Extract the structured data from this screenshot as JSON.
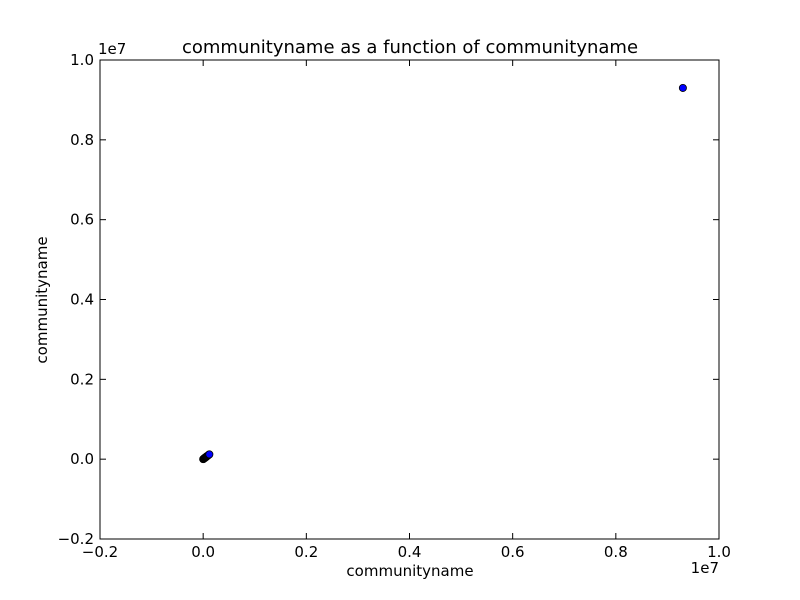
{
  "chart_data": {
    "type": "scatter",
    "title": "communityname as a function of communityname",
    "xlabel": "communityname",
    "ylabel": "communityname",
    "xlim": [
      -2000000,
      10000000
    ],
    "ylim": [
      -2000000,
      10000000
    ],
    "x_ticks": [
      -2000000,
      0,
      2000000,
      4000000,
      6000000,
      8000000,
      10000000
    ],
    "y_ticks": [
      -2000000,
      0,
      2000000,
      4000000,
      6000000,
      8000000,
      10000000
    ],
    "x_tick_labels": [
      "−0.2",
      "0.0",
      "0.2",
      "0.4",
      "0.6",
      "0.8",
      "1.0"
    ],
    "y_tick_labels": [
      "−0.2",
      "0.0",
      "0.2",
      "0.4",
      "0.6",
      "0.8",
      "1.0"
    ],
    "x_offset_label": "1e7",
    "y_offset_label": "1e7",
    "grid": false,
    "marker_color": "#0000ff",
    "marker_edge_color": "#000000",
    "points": [
      {
        "x": 9300000,
        "y": 9300000
      },
      {
        "x": 0,
        "y": 0
      },
      {
        "x": 5000,
        "y": 5000
      },
      {
        "x": 10000,
        "y": 10000
      },
      {
        "x": 15000,
        "y": 15000
      },
      {
        "x": 20000,
        "y": 20000
      },
      {
        "x": 25000,
        "y": 25000
      },
      {
        "x": 30000,
        "y": 30000
      },
      {
        "x": 35000,
        "y": 35000
      },
      {
        "x": 40000,
        "y": 40000
      },
      {
        "x": 45000,
        "y": 45000
      },
      {
        "x": 50000,
        "y": 50000
      },
      {
        "x": 55000,
        "y": 55000
      },
      {
        "x": 60000,
        "y": 60000
      },
      {
        "x": 65000,
        "y": 65000
      },
      {
        "x": 70000,
        "y": 70000
      },
      {
        "x": 80000,
        "y": 80000
      },
      {
        "x": 90000,
        "y": 90000
      },
      {
        "x": 100000,
        "y": 100000
      },
      {
        "x": 110000,
        "y": 110000
      },
      {
        "x": 120000,
        "y": 120000
      }
    ]
  }
}
